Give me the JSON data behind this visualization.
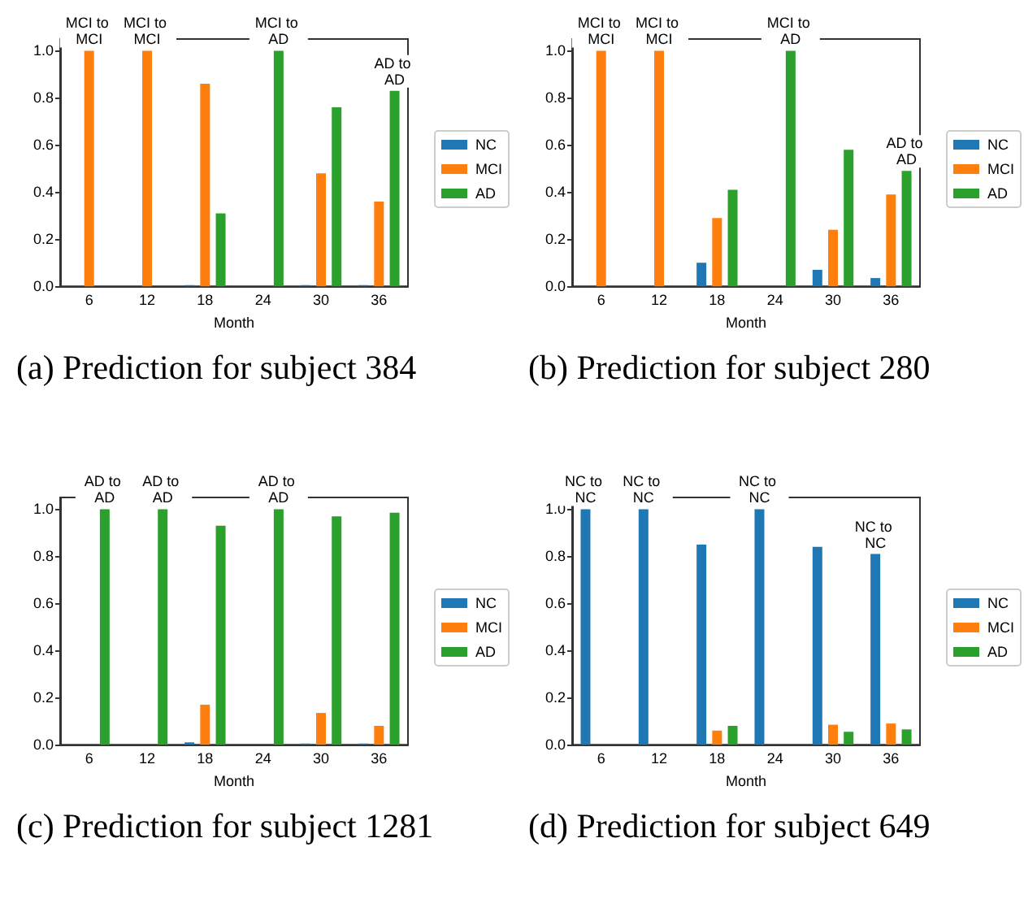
{
  "chart_data": [
    {
      "type": "bar",
      "title": "(a) Prediction for subject 384",
      "xlabel": "Month",
      "categories": [
        "6",
        "12",
        "18",
        "24",
        "30",
        "36"
      ],
      "series": [
        {
          "name": "NC",
          "color": "#1f77b4",
          "values": [
            0,
            0,
            0.005,
            0,
            0.005,
            0.005
          ]
        },
        {
          "name": "MCI",
          "color": "#ff7f0e",
          "values": [
            1,
            1,
            0.86,
            0,
            0.48,
            0.36
          ],
          "value_labels": [
            "MCI to MCI",
            "MCI to MCI",
            null,
            null,
            null,
            null
          ]
        },
        {
          "name": "AD",
          "color": "#2ca02c",
          "values": [
            0,
            0,
            0.31,
            1,
            0.76,
            0.83
          ],
          "value_labels": [
            null,
            null,
            null,
            "MCI to AD",
            null,
            "AD to AD"
          ]
        }
      ],
      "ylim": [
        0,
        1.05
      ],
      "yticks": [
        {
          "value": 0,
          "label": "0.0"
        },
        {
          "value": 0.2,
          "label": "0.2"
        },
        {
          "value": 0.4,
          "label": "0.4"
        },
        {
          "value": 0.6,
          "label": "0.6"
        },
        {
          "value": 0.8,
          "label": "0.8"
        },
        {
          "value": 1,
          "label": "1.0"
        }
      ],
      "legend": "right",
      "grid": false
    },
    {
      "type": "bar",
      "title": "(b) Prediction for subject 280",
      "xlabel": "Month",
      "categories": [
        "6",
        "12",
        "18",
        "24",
        "30",
        "36"
      ],
      "series": [
        {
          "name": "NC",
          "color": "#1f77b4",
          "values": [
            0,
            0,
            0.1,
            0,
            0.07,
            0.035
          ]
        },
        {
          "name": "MCI",
          "color": "#ff7f0e",
          "values": [
            1,
            1,
            0.29,
            0,
            0.24,
            0.39
          ],
          "value_labels": [
            "MCI to MCI",
            "MCI to MCI",
            null,
            null,
            null,
            null
          ]
        },
        {
          "name": "AD",
          "color": "#2ca02c",
          "values": [
            0,
            0,
            0.41,
            1,
            0.58,
            0.49
          ],
          "value_labels": [
            null,
            null,
            null,
            "MCI to AD",
            null,
            "AD to AD"
          ]
        }
      ],
      "ylim": [
        0,
        1.05
      ],
      "yticks": [
        {
          "value": 0,
          "label": "0.0"
        },
        {
          "value": 0.2,
          "label": "0.2"
        },
        {
          "value": 0.4,
          "label": "0.4"
        },
        {
          "value": 0.6,
          "label": "0.6"
        },
        {
          "value": 0.8,
          "label": "0.8"
        },
        {
          "value": 1,
          "label": "1.0"
        }
      ],
      "legend": "right",
      "grid": false
    },
    {
      "type": "bar",
      "title": "(c) Prediction for subject 1281",
      "xlabel": "Month",
      "categories": [
        "6",
        "12",
        "18",
        "24",
        "30",
        "36"
      ],
      "series": [
        {
          "name": "NC",
          "color": "#1f77b4",
          "values": [
            0,
            0,
            0.01,
            0,
            0.005,
            0.005
          ]
        },
        {
          "name": "MCI",
          "color": "#ff7f0e",
          "values": [
            0,
            0,
            0.17,
            0,
            0.135,
            0.08
          ]
        },
        {
          "name": "AD",
          "color": "#2ca02c",
          "values": [
            1,
            1,
            0.93,
            1,
            0.97,
            0.985
          ],
          "value_labels": [
            "AD to AD",
            "AD to AD",
            null,
            "AD to AD",
            null,
            null
          ]
        }
      ],
      "ylim": [
        0,
        1.05
      ],
      "yticks": [
        {
          "value": 0,
          "label": "0.0"
        },
        {
          "value": 0.2,
          "label": "0.2"
        },
        {
          "value": 0.4,
          "label": "0.4"
        },
        {
          "value": 0.6,
          "label": "0.6"
        },
        {
          "value": 0.8,
          "label": "0.8"
        },
        {
          "value": 1,
          "label": "1.0"
        }
      ],
      "legend": "right",
      "grid": false
    },
    {
      "type": "bar",
      "title": "(d) Prediction for subject 649",
      "xlabel": "Month",
      "categories": [
        "6",
        "12",
        "18",
        "24",
        "30",
        "36"
      ],
      "series": [
        {
          "name": "NC",
          "color": "#1f77b4",
          "values": [
            1,
            1,
            0.85,
            1,
            0.84,
            0.81
          ],
          "value_labels": [
            "NC to NC",
            "NC to NC",
            null,
            "NC to NC",
            null,
            "NC to NC"
          ]
        },
        {
          "name": "MCI",
          "color": "#ff7f0e",
          "values": [
            0,
            0,
            0.06,
            0,
            0.085,
            0.09
          ]
        },
        {
          "name": "AD",
          "color": "#2ca02c",
          "values": [
            0,
            0,
            0.08,
            0,
            0.055,
            0.065
          ]
        }
      ],
      "ylim": [
        0,
        1.05
      ],
      "yticks": [
        {
          "value": 0,
          "label": "0.0"
        },
        {
          "value": 0.2,
          "label": "0.2"
        },
        {
          "value": 0.4,
          "label": "0.4"
        },
        {
          "value": 0.6,
          "label": "0.6"
        },
        {
          "value": 0.8,
          "label": "0.8"
        },
        {
          "value": 1,
          "label": "1.0"
        }
      ],
      "legend": "right",
      "grid": false
    }
  ]
}
